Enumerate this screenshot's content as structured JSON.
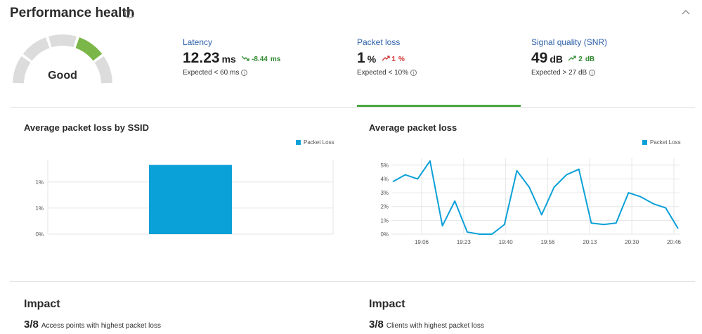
{
  "header": {
    "title": "Performance health"
  },
  "gauge": {
    "label": "Good",
    "active_color": "#7ab648",
    "inactive_color": "#dcdcdc",
    "segments": 5,
    "active_segment": 4
  },
  "metrics": [
    {
      "title": "Latency",
      "value": "12.23",
      "unit": "ms",
      "trend": "-8.44",
      "trend_unit": "ms",
      "trend_dir": "down",
      "expected": "Expected < 60 ms"
    },
    {
      "title": "Packet loss",
      "value": "1",
      "unit": "%",
      "trend": "1",
      "trend_unit": "%",
      "trend_dir": "up",
      "expected": "Expected < 10%"
    },
    {
      "title": "Signal quality (SNR)",
      "value": "49",
      "unit": "dB",
      "trend": "2",
      "trend_unit": "dB",
      "trend_dir": "up",
      "expected": "Expected > 27 dB"
    }
  ],
  "chart_data": [
    {
      "type": "bar",
      "title": "Average packet loss by SSID",
      "series": [
        {
          "name": "Packet Loss",
          "values": [
            1.3
          ]
        }
      ],
      "categories": [
        ""
      ],
      "y_ticks": [
        "0%",
        "1%",
        "1%"
      ],
      "ylim": [
        0,
        1.4
      ],
      "color": "#0aa0d8",
      "legend": "top-right",
      "grid": true
    },
    {
      "type": "line",
      "title": "Average packet loss",
      "series": [
        {
          "name": "Packet Loss",
          "values": [
            3.8,
            4.3,
            4.0,
            5.3,
            0.6,
            2.4,
            0.15,
            0.0,
            0.0,
            0.7,
            4.6,
            3.4,
            1.4,
            3.4,
            4.3,
            4.7,
            0.8,
            0.7,
            0.8,
            3.0,
            2.7,
            2.2,
            1.9,
            0.4
          ]
        }
      ],
      "x_ticks": [
        "19:06",
        "19:23",
        "19:40",
        "19:56",
        "20:13",
        "20:30",
        "20:46"
      ],
      "y_ticks": [
        "0%",
        "1%",
        "2%",
        "3%",
        "4%",
        "5%"
      ],
      "ylim": [
        0,
        5.5
      ],
      "color": "#0aa0d8",
      "legend": "top-right",
      "grid": true
    }
  ],
  "impact": [
    {
      "title": "Impact",
      "count": "3/8",
      "text": "Access points with highest packet loss"
    },
    {
      "title": "Impact",
      "count": "3/8",
      "text": "Clients with highest packet loss"
    }
  ]
}
